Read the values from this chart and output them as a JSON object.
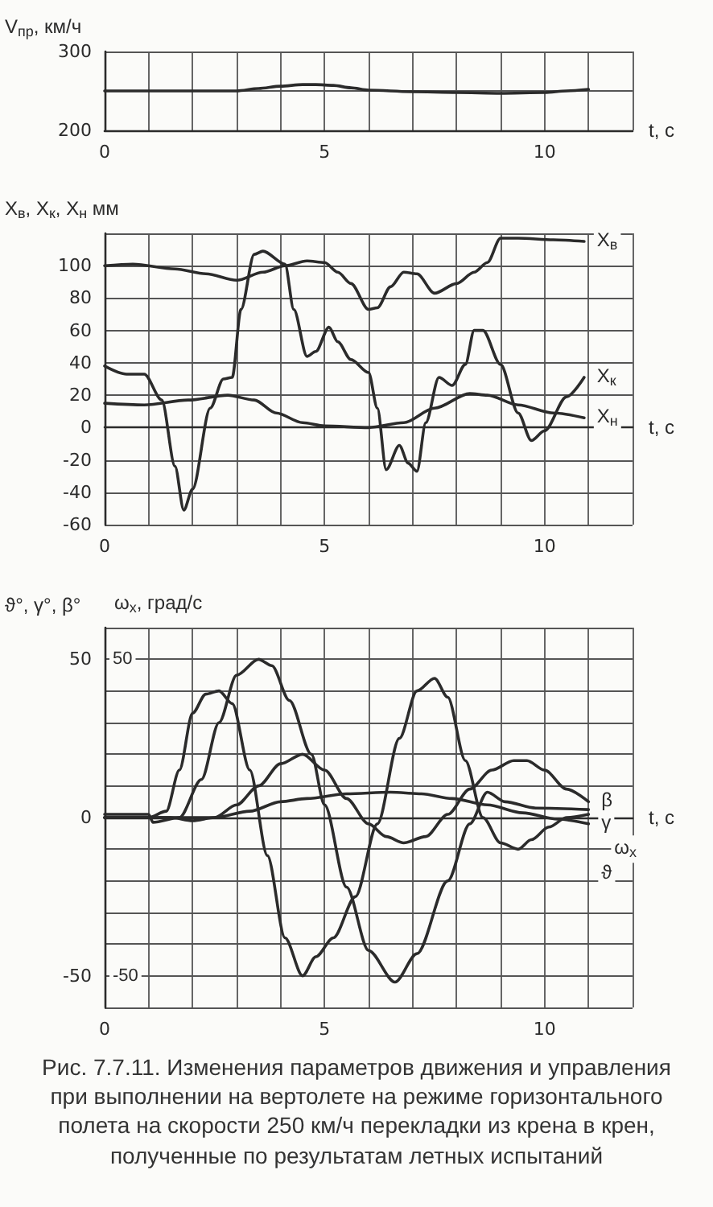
{
  "chart_data": [
    {
      "type": "line",
      "ylabel": "V$_{пр}$, км/ч",
      "xlabel": "t, c",
      "xlim": [
        0,
        12
      ],
      "xticks": [
        0,
        {
          "value": 1,
          "label": null
        },
        {
          "value": 2,
          "label": null
        },
        {
          "value": 3,
          "label": null
        },
        {
          "value": 4,
          "label": null
        },
        5,
        {
          "value": 6,
          "label": null
        },
        {
          "value": 7,
          "label": null
        },
        {
          "value": 8,
          "label": null
        },
        {
          "value": 9,
          "label": null
        },
        10,
        {
          "value": 11,
          "label": null
        },
        {
          "value": 12,
          "label": null
        }
      ],
      "ylim": [
        200,
        300
      ],
      "yticks": [
        200,
        {
          "value": 250,
          "label": null
        },
        300
      ],
      "grid": true,
      "series": [
        {
          "color": "#2b2b2b",
          "x": [
            0,
            1,
            2,
            3,
            3.5,
            4,
            4.5,
            4.8,
            5.2,
            5.6,
            6,
            7,
            8,
            9,
            10,
            10.5,
            11
          ],
          "values": [
            250,
            250,
            250,
            250,
            253,
            256,
            258,
            258,
            257,
            254,
            251,
            249,
            248,
            247,
            248,
            250,
            252
          ]
        }
      ]
    },
    {
      "type": "line",
      "ylabel": "X$_{в}$, X$_{к}$, X$_{н}$ мм",
      "xlabel": "t, c",
      "xlim": [
        0,
        12
      ],
      "xticks": [
        0,
        {
          "value": 1,
          "label": null
        },
        {
          "value": 2,
          "label": null
        },
        {
          "value": 3,
          "label": null
        },
        {
          "value": 4,
          "label": null
        },
        5,
        {
          "value": 6,
          "label": null
        },
        {
          "value": 7,
          "label": null
        },
        {
          "value": 8,
          "label": null
        },
        {
          "value": 9,
          "label": null
        },
        10,
        {
          "value": 11,
          "label": null
        },
        {
          "value": 12,
          "label": null
        }
      ],
      "ylim": [
        -60,
        120
      ],
      "yticks": [
        -60,
        -40,
        -20,
        0,
        20,
        40,
        60,
        80,
        100,
        {
          "value": 120,
          "label": null
        }
      ],
      "grid": true,
      "series": [
        {
          "name": "X$_{в}$",
          "color": "#2b2b2b",
          "x": [
            0,
            0.64,
            1.6,
            2.3,
            3,
            3.6,
            4.1,
            4.6,
            5,
            5.3,
            5.6,
            6,
            6.2,
            6.5,
            6.8,
            7.1,
            7.5,
            8,
            8.4,
            8.7,
            9,
            9.4,
            10.2,
            10.9
          ],
          "values": [
            100,
            101,
            98,
            95,
            91,
            96,
            100,
            103,
            102,
            96,
            89,
            73,
            74,
            87,
            96,
            95,
            83,
            89,
            96,
            102,
            117,
            117,
            116,
            115
          ]
        },
        {
          "name": "X$_{к}$",
          "color": "#2b2b2b",
          "x": [
            0,
            0.5,
            0.9,
            1.3,
            1.6,
            1.8,
            2,
            2.4,
            2.7,
            2.9,
            3.1,
            3.4,
            3.6,
            4.1,
            4.3,
            4.6,
            4.8,
            5.1,
            5.3,
            5.6,
            6,
            6.2,
            6.4,
            6.7,
            6.9,
            7.1,
            7.3,
            7.6,
            7.9,
            8.2,
            8.4,
            8.6,
            9,
            9.4,
            9.7,
            10,
            10.5,
            10.9
          ],
          "values": [
            38,
            33,
            33,
            17,
            -24,
            -51,
            -38,
            12,
            30,
            31,
            73,
            107,
            109,
            101,
            73,
            44,
            47,
            62,
            53,
            42,
            34,
            12,
            -26,
            -11,
            -22,
            -27,
            3,
            31,
            26,
            39,
            60,
            60,
            39,
            9,
            -8,
            -2,
            19,
            31
          ]
        },
        {
          "name": "X$_{н}$",
          "color": "#2b2b2b",
          "x": [
            0,
            0.9,
            1.9,
            2.8,
            3.4,
            3.9,
            4.5,
            5,
            6,
            6.8,
            7.5,
            8.3,
            8.7,
            9.4,
            10.2,
            10.9
          ],
          "values": [
            15,
            14,
            17,
            20,
            17,
            9,
            3,
            1,
            0,
            3,
            12,
            21,
            20,
            14,
            9,
            6
          ]
        }
      ]
    },
    {
      "type": "line",
      "ylabel": "ϑ°, γ°, β°",
      "y2label": "ω$_{x}$, град/с",
      "xlabel": "t, c",
      "xlim": [
        0,
        12
      ],
      "xticks": [
        0,
        {
          "value": 1,
          "label": null
        },
        {
          "value": 2,
          "label": null
        },
        {
          "value": 3,
          "label": null
        },
        {
          "value": 4,
          "label": null
        },
        5,
        {
          "value": 6,
          "label": null
        },
        {
          "value": 7,
          "label": null
        },
        {
          "value": 8,
          "label": null
        },
        {
          "value": 9,
          "label": null
        },
        10,
        {
          "value": 11,
          "label": null
        },
        {
          "value": 12,
          "label": null
        }
      ],
      "ylim": [
        -60,
        60
      ],
      "yticks": [
        {
          "value": -60,
          "label": null
        },
        -50,
        {
          "value": -40,
          "label": null
        },
        {
          "value": -30,
          "label": null
        },
        {
          "value": -20,
          "label": null
        },
        {
          "value": -10,
          "label": null
        },
        0,
        {
          "value": 10,
          "label": null
        },
        {
          "value": 20,
          "label": null
        },
        {
          "value": 30,
          "label": null
        },
        {
          "value": 40,
          "label": null
        },
        50,
        {
          "value": 60,
          "label": null
        }
      ],
      "y2lim": [
        -60,
        60
      ],
      "y2ticks": [
        -50,
        50
      ],
      "grid": true,
      "annotations": [
        "Рис. 7.7.11. Изменения параметров движения и управления при выполнении на вертолете на режиме горизонтального полета на скорости 250 км/ч перекладки из крена в крен, полученные по результатам летных испытаний"
      ],
      "series": [
        {
          "name": "ω$_{x}$",
          "axis": "y2",
          "color": "#2b2b2b",
          "x": [
            0,
            1,
            1.4,
            1.7,
            2,
            2.3,
            2.6,
            2.9,
            3.3,
            3.7,
            4.1,
            4.5,
            4.8,
            5.2,
            5.7,
            6.2,
            6.7,
            7.1,
            7.5,
            7.8,
            8.2,
            8.6,
            9,
            9.4,
            9.7,
            10.1,
            10.5,
            11
          ],
          "values": [
            0,
            0,
            2,
            15,
            33,
            39,
            40,
            36,
            15,
            -12,
            -38,
            -50,
            -44,
            -38,
            -25,
            -2,
            25,
            40,
            44,
            38,
            18,
            0,
            -8,
            -10,
            -7,
            -3,
            0,
            1
          ]
        },
        {
          "name": "γ",
          "color": "#2b2b2b",
          "x": [
            0,
            1,
            1.1,
            1.7,
            2.2,
            2.6,
            3,
            3.5,
            3.8,
            4.2,
            4.7,
            5,
            5.5,
            6,
            6.6,
            7.1,
            7.8,
            8.3,
            8.7,
            9.1,
            9.8,
            11
          ],
          "values": [
            1,
            1,
            -1.5,
            0,
            12,
            30,
            45,
            50,
            48,
            37,
            20,
            4,
            -22,
            -42,
            -52,
            -43,
            -20,
            -2,
            8,
            5,
            3,
            2.5
          ]
        },
        {
          "name": "β",
          "color": "#2b2b2b",
          "x": [
            0,
            1.5,
            2,
            2.5,
            3,
            3.5,
            4,
            4.5,
            5,
            5.5,
            6,
            6.4,
            6.8,
            7.3,
            7.8,
            8.3,
            8.8,
            9.3,
            9.6,
            10,
            10.5,
            11
          ],
          "values": [
            0,
            0,
            -1,
            0,
            4,
            10,
            17,
            20,
            15,
            6,
            -2,
            -6,
            -8,
            -6,
            1,
            9,
            15,
            18,
            18,
            15,
            9,
            5
          ]
        },
        {
          "name": "ϑ",
          "color": "#2b2b2b",
          "x": [
            0,
            2.5,
            3.3,
            4,
            4.6,
            5.5,
            6.5,
            7.2,
            7.9,
            8.7,
            9.5,
            10.3,
            11
          ],
          "values": [
            0,
            0,
            2,
            5,
            6,
            7.5,
            8,
            7.5,
            6,
            4,
            1.5,
            -0.5,
            -2
          ]
        }
      ]
    }
  ]
}
